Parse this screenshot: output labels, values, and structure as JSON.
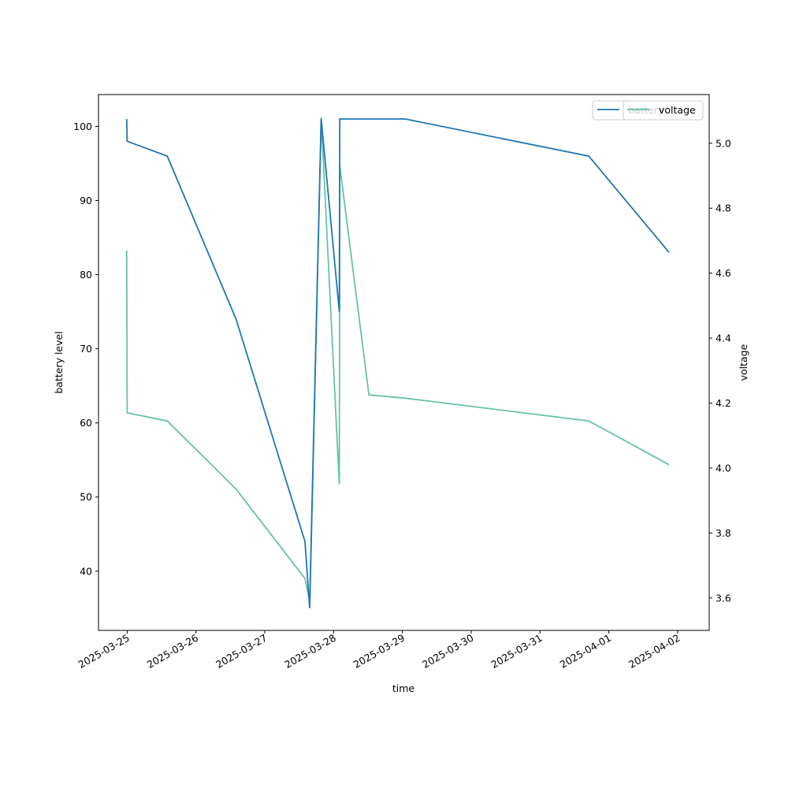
{
  "chart_data": {
    "type": "line",
    "xlabel": "time",
    "ylabel_left": "battery level",
    "ylabel_right": "voltage",
    "x_ticks": [
      "2025-03-25",
      "2025-03-26",
      "2025-03-27",
      "2025-03-28",
      "2025-03-29",
      "2025-03-30",
      "2025-03-31",
      "2025-04-01",
      "2025-04-02"
    ],
    "y_left_ticks": [
      40,
      50,
      60,
      70,
      80,
      90,
      100
    ],
    "y_right_ticks": [
      "3.6",
      "3.8",
      "4.0",
      "4.2",
      "4.4",
      "4.6",
      "4.8",
      "5.0"
    ],
    "y_left_range": [
      32,
      104.3
    ],
    "y_right_range": [
      3.5,
      5.15
    ],
    "x_range": [
      "2025-03-24 14:00",
      "2025-04-02 11:00"
    ],
    "series": [
      {
        "name": "battery",
        "axis": "left",
        "color": "#1f77b4",
        "points": [
          [
            "2025-03-24 23:50",
            101
          ],
          [
            "2025-03-25 00:00",
            98
          ],
          [
            "2025-03-25 14:00",
            96
          ],
          [
            "2025-03-26 14:00",
            74
          ],
          [
            "2025-03-27 14:00",
            44
          ],
          [
            "2025-03-27 15:40",
            35
          ],
          [
            "2025-03-27 19:40",
            101
          ],
          [
            "2025-03-28 02:00",
            75
          ],
          [
            "2025-03-28 02:10",
            101
          ],
          [
            "2025-03-29 01:00",
            101
          ],
          [
            "2025-03-31 17:00",
            96
          ],
          [
            "2025-04-01 21:00",
            83
          ]
        ]
      },
      {
        "name": "voltage",
        "axis": "right",
        "color": "#66c2a5",
        "points": [
          [
            "2025-03-24 23:50",
            4.67
          ],
          [
            "2025-03-25 00:00",
            4.17
          ],
          [
            "2025-03-25 14:00",
            4.145
          ],
          [
            "2025-03-26 14:00",
            3.935
          ],
          [
            "2025-03-27 14:00",
            3.66
          ],
          [
            "2025-03-27 15:40",
            3.59
          ],
          [
            "2025-03-27 19:40",
            5.08
          ],
          [
            "2025-03-28 02:00",
            3.95
          ],
          [
            "2025-03-28 02:10",
            4.93
          ],
          [
            "2025-03-28 12:20",
            4.225
          ],
          [
            "2025-03-29 01:00",
            4.215
          ],
          [
            "2025-03-31 17:00",
            4.145
          ],
          [
            "2025-04-01 21:00",
            4.01
          ]
        ]
      }
    ],
    "legend": {
      "placement": "top-right",
      "entries": [
        {
          "label": "battery",
          "color": "#1f77b4"
        },
        {
          "label": "voltage",
          "color": "#66c2a5"
        }
      ]
    }
  }
}
